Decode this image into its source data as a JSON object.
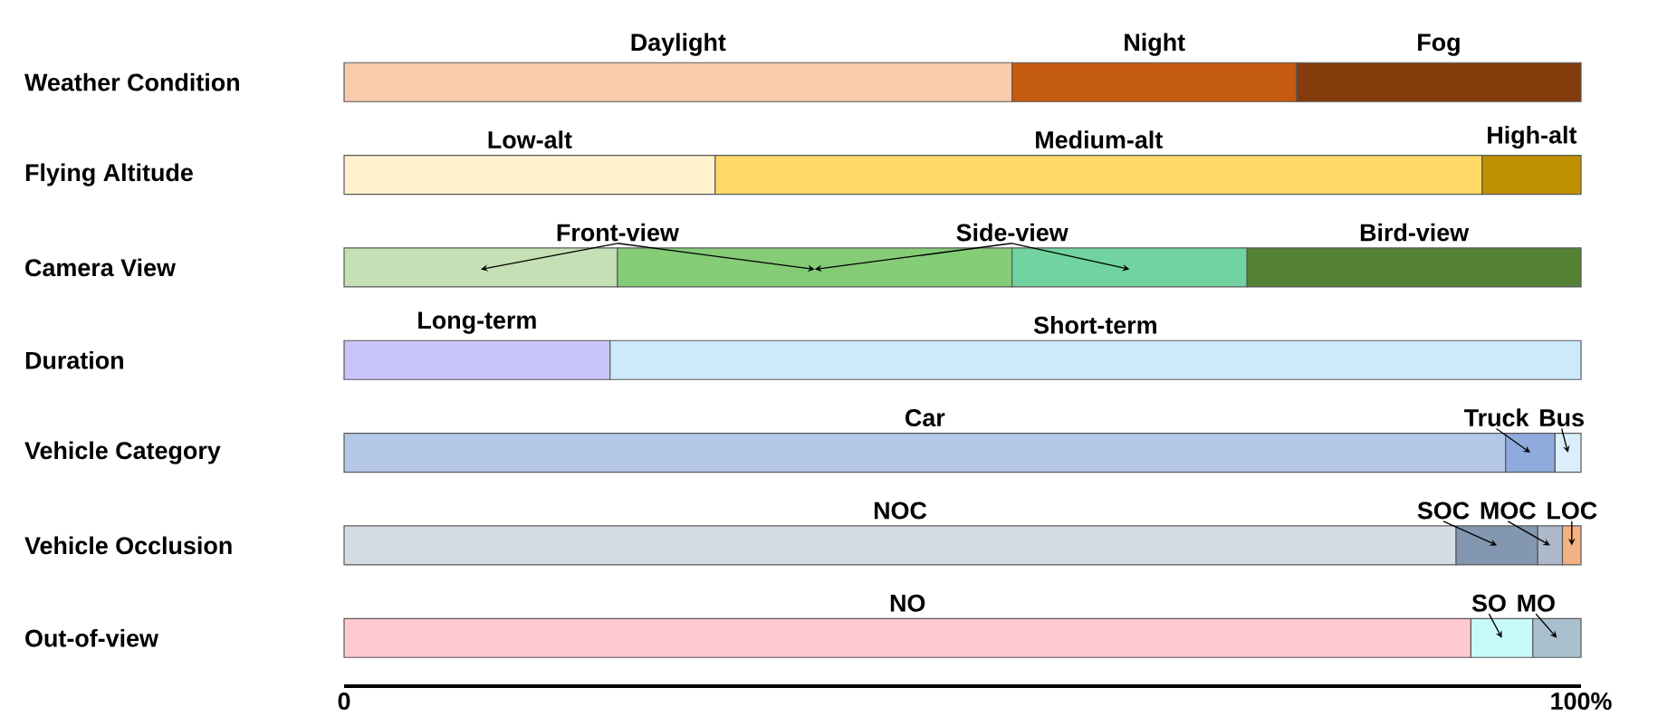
{
  "chart_data": {
    "type": "bar",
    "orientation": "horizontal",
    "stacked": true,
    "categories": [
      "Weather Condition",
      "Flying Altitude",
      "Camera View",
      "Duration",
      "Vehicle Category",
      "Vehicle Occlusion",
      "Out-of-view"
    ],
    "xlim": [
      0,
      100
    ],
    "xticks": [
      0,
      {
        "value": 100,
        "label": "100%"
      }
    ],
    "series": [
      {
        "name": "Daylight",
        "color": "#f8cbad",
        "values": [
          54.0,
          null,
          null,
          null,
          null,
          null,
          null
        ]
      },
      {
        "name": "Night",
        "color": "#c55a11",
        "values": [
          23.0,
          null,
          null,
          null,
          null,
          null,
          null
        ]
      },
      {
        "name": "Fog",
        "color": "#843c0c",
        "values": [
          23.0,
          null,
          null,
          null,
          null,
          null,
          null
        ]
      },
      {
        "name": "Low-alt",
        "color": "#fff2cc",
        "values": [
          null,
          30.0,
          null,
          null,
          null,
          null,
          null
        ]
      },
      {
        "name": "Medium-alt",
        "color": "#ffd966",
        "values": [
          null,
          62.0,
          null,
          null,
          null,
          null,
          null
        ]
      },
      {
        "name": "High-alt",
        "color": "#bf9000",
        "values": [
          null,
          8.0,
          null,
          null,
          null,
          null,
          null
        ]
      },
      {
        "color": "#c5e0b4",
        "values": [
          null,
          null,
          22.1,
          null,
          null,
          null,
          null
        ]
      },
      {
        "color": "#84cc76",
        "values": [
          null,
          null,
          31.9,
          null,
          null,
          null,
          null
        ]
      },
      {
        "color": "#70d3a0",
        "values": [
          null,
          null,
          19.0,
          null,
          null,
          null,
          null
        ]
      },
      {
        "name": "Bird-view",
        "color": "#548235",
        "values": [
          null,
          null,
          27.0,
          null,
          null,
          null,
          null
        ]
      },
      {
        "name": "Long-term",
        "color": "#c9c5f8",
        "values": [
          null,
          null,
          null,
          21.5,
          null,
          null,
          null
        ]
      },
      {
        "name": "Short-term",
        "color": "#cdeafb",
        "values": [
          null,
          null,
          null,
          78.5,
          null,
          null,
          null
        ]
      },
      {
        "name": "Car",
        "color": "#b4c7e7",
        "values": [
          null,
          null,
          null,
          null,
          93.9,
          null,
          null
        ]
      },
      {
        "name": "Truck",
        "color": "#8faadc",
        "values": [
          null,
          null,
          null,
          null,
          4.0,
          null,
          null
        ]
      },
      {
        "name": "Bus",
        "color": "#daeefb",
        "values": [
          null,
          null,
          null,
          null,
          2.1,
          null,
          null
        ]
      },
      {
        "name": "NOC",
        "color": "#d6dce5",
        "values": [
          null,
          null,
          null,
          null,
          null,
          89.9,
          null
        ]
      },
      {
        "name": "SOC",
        "color": "#8497b0",
        "values": [
          null,
          null,
          null,
          null,
          null,
          6.6,
          null
        ]
      },
      {
        "name": "MOC",
        "color": "#adb9ca",
        "values": [
          null,
          null,
          null,
          null,
          null,
          2.0,
          null
        ]
      },
      {
        "name": "LOC",
        "color": "#f4b183",
        "values": [
          null,
          null,
          null,
          null,
          null,
          1.5,
          null
        ]
      },
      {
        "name": "NO",
        "color": "#ffc9cf",
        "values": [
          null,
          null,
          null,
          null,
          null,
          null,
          91.1
        ]
      },
      {
        "name": "SO",
        "color": "#c9fafa",
        "values": [
          null,
          null,
          null,
          null,
          null,
          null,
          5.0
        ]
      },
      {
        "name": "MO",
        "color": "#a9c0cf",
        "values": [
          null,
          null,
          null,
          null,
          null,
          null,
          3.9
        ]
      }
    ],
    "annotations": [
      "Front-view",
      "Side-view"
    ]
  }
}
